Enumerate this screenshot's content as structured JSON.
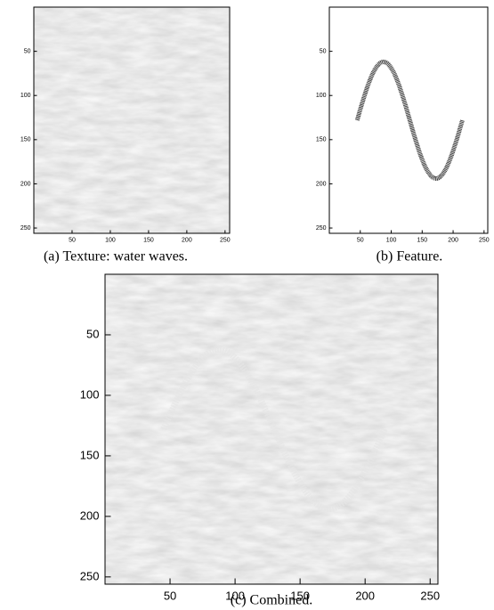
{
  "panels": [
    {
      "caption": "(a) Texture: water waves.",
      "xlim": [
        0,
        256
      ],
      "ylim": [
        0,
        256
      ],
      "xticks": [
        50,
        100,
        150,
        200,
        250
      ],
      "yticks": [
        50,
        100,
        150,
        200,
        250
      ]
    },
    {
      "caption": "(b) Feature.",
      "xlim": [
        0,
        256
      ],
      "ylim": [
        0,
        256
      ],
      "xticks": [
        50,
        100,
        150,
        200,
        250
      ],
      "yticks": [
        50,
        100,
        150,
        200,
        250
      ]
    },
    {
      "caption": "(c) Combined.",
      "xlim": [
        0,
        256
      ],
      "ylim": [
        0,
        256
      ],
      "xticks": [
        50,
        100,
        150,
        200,
        250
      ],
      "yticks": [
        50,
        100,
        150,
        200,
        250
      ]
    }
  ]
}
